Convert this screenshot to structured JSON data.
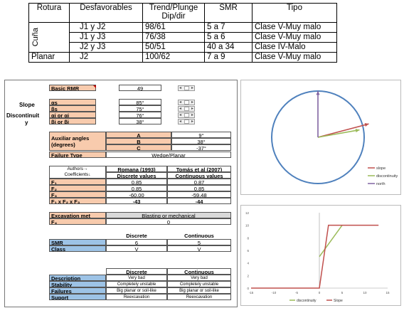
{
  "top_table": {
    "headers": [
      "Rotura",
      "Desfavorables",
      "Trend/Plunge\nDip/dir",
      "SMR",
      "Tipo"
    ],
    "groups": [
      {
        "rotura": "Cuña",
        "rows": [
          {
            "desf": "J1 y J2",
            "trend": "98/61",
            "smr": "5 a 7",
            "tipo": "Clase V-Muy malo"
          },
          {
            "desf": "J1 y J3",
            "trend": "76/38",
            "smr": "5 a 6",
            "tipo": "Clase V-Muy malo"
          },
          {
            "desf": "J2 y J3",
            "trend": "50/51",
            "smr": "40 a 34",
            "tipo": "Clase IV-Malo"
          }
        ]
      },
      {
        "rotura": "Planar",
        "rows": [
          {
            "desf": "J2",
            "trend": "100/62",
            "smr": "7 a 9",
            "tipo": "Clase V-Muy malo"
          }
        ]
      }
    ]
  },
  "sheet": {
    "basic_rmr": {
      "label": "Basic RMR",
      "value": "49"
    },
    "side_labels": {
      "slope": "Slope",
      "discontinuity": "Discontinuit",
      "discontinuity_2": "y"
    },
    "angles": [
      {
        "label": "αs",
        "value": "85°"
      },
      {
        "label": "βs",
        "value": "75°"
      },
      {
        "label": "αj or αi",
        "value": "76°"
      },
      {
        "label": "βj or βi",
        "value": "38°"
      }
    ],
    "aux": {
      "label_1": "Auxiliar angles",
      "label_2": "(degrees)",
      "rows": [
        {
          "key": "A",
          "value": "9°"
        },
        {
          "key": "B",
          "value": "38°"
        },
        {
          "key": "C",
          "value": "-37°"
        }
      ]
    },
    "failure_type": {
      "label": "Failure Type",
      "value": "Wedge/Planar"
    },
    "factors": {
      "authors_label": "Authors→",
      "coefficients_label": "Coefficients↓",
      "col1_title": "Romana (1993)",
      "col1_sub": "Discrete values",
      "col2_title": "Tomás et al (2007)",
      "col2_sub": "Continuous values",
      "rows": [
        {
          "label": "F₁",
          "v1": "0,85",
          "v2": "0,87"
        },
        {
          "label": "F₂",
          "v1": "0,85",
          "v2": "0,85"
        },
        {
          "label": "F₃",
          "v1": "-60,00",
          "v2": "-59,48"
        },
        {
          "label": "F₁ x F₂ x F₃",
          "v1": "-43",
          "v2": "-44"
        }
      ]
    },
    "excavation": {
      "label": "Excavation met",
      "value": "Blasting or mechanical",
      "f4_label": "F₄",
      "f4_value": "0"
    },
    "smr_table": {
      "col1": "Discrete",
      "col2": "Continuous",
      "rows": [
        {
          "label": "SMR",
          "v1": "6",
          "v2": "5"
        },
        {
          "label": "Class",
          "v1": "V",
          "v2": "V"
        }
      ]
    },
    "desc_table": {
      "col1": "Discrete",
      "col2": "Continuous",
      "rows": [
        {
          "label": "Description",
          "v1": "Very bad",
          "v2": "Very bad"
        },
        {
          "label": "Stability",
          "v1": "Completely unstable",
          "v2": "Completely unstable"
        },
        {
          "label": "Failures",
          "v1": "Big planar or soil-like",
          "v2": "Big planar or soil-like"
        },
        {
          "label": "Suport",
          "v1": "Reexcavation",
          "v2": "Reexcavation"
        }
      ]
    }
  },
  "colors": {
    "label_bg": "#f8cbad",
    "blue_bg": "#9dc3e6",
    "slope": "#c0504d",
    "discontinuity": "#9bbb59",
    "north": "#8064a2",
    "circle": "#4f81bd"
  },
  "chart_data": [
    {
      "type": "line",
      "title": "",
      "series": [
        {
          "name": "slope",
          "color": "#c0504d",
          "x": [
            0,
            1.1
          ],
          "y": [
            0,
            0.29
          ]
        },
        {
          "name": "discontinuity",
          "color": "#9bbb59",
          "x": [
            0,
            0.9
          ],
          "y": [
            0,
            0.16
          ]
        },
        {
          "name": "north",
          "color": "#8064a2",
          "x": [
            0,
            0
          ],
          "y": [
            0,
            1
          ]
        }
      ],
      "circle": true,
      "legend": "right"
    },
    {
      "type": "line",
      "title": "",
      "x_ticks": [
        "-15",
        "-10",
        "-5",
        "0",
        "5",
        "10",
        "15"
      ],
      "y_ticks": [
        "0",
        "2",
        "4",
        "6",
        "8",
        "10",
        "12"
      ],
      "xlim": [
        -15,
        15
      ],
      "ylim": [
        0,
        12
      ],
      "series": [
        {
          "name": "discontinuity",
          "color": "#9bbb59",
          "x": [
            0,
            5
          ],
          "y": [
            5,
            10
          ]
        },
        {
          "name": "Slope",
          "color": "#c0504d",
          "x": [
            -15,
            0,
            2,
            13
          ],
          "y": [
            0,
            0,
            10,
            10
          ]
        }
      ],
      "legend": "bottom"
    }
  ]
}
